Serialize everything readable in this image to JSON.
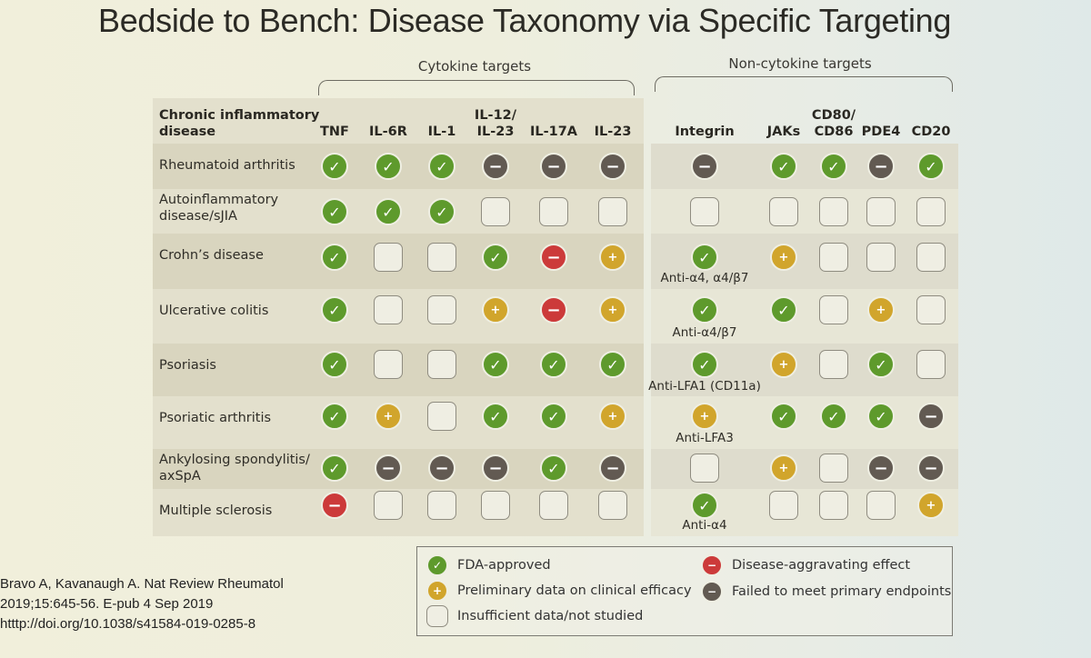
{
  "title": "Bedside to Bench: Disease Taxonomy via Specific Targeting",
  "groups": {
    "cytokine": "Cytokine targets",
    "noncytokine": "Non-cytokine targets"
  },
  "disease_header": [
    "Chronic inflammatory",
    "disease"
  ],
  "columns": [
    [
      "TNF"
    ],
    [
      "IL-6R"
    ],
    [
      "IL-1"
    ],
    [
      "IL-12/",
      "IL-23"
    ],
    [
      "IL-17A"
    ],
    [
      "IL-23"
    ],
    [
      "Integrin"
    ],
    [
      "JAKs"
    ],
    [
      "CD80/",
      "CD86"
    ],
    [
      "PDE4"
    ],
    [
      "CD20"
    ]
  ],
  "rows": [
    {
      "name": [
        "Rheumatoid arthritis"
      ],
      "cells": [
        "fda",
        "fda",
        "fda",
        "failed",
        "failed",
        "failed",
        "failed",
        "fda",
        "fda",
        "failed",
        "fda"
      ],
      "note": ""
    },
    {
      "name": [
        "Autoinflammatory",
        "disease/sJIA"
      ],
      "cells": [
        "fda",
        "fda",
        "fda",
        "none",
        "none",
        "none",
        "none",
        "none",
        "none",
        "none",
        "none"
      ],
      "note": ""
    },
    {
      "name": [
        "Crohn’s disease"
      ],
      "cells": [
        "fda",
        "none",
        "none",
        "fda",
        "aggr",
        "prelim",
        "fda",
        "prelim",
        "none",
        "none",
        "none"
      ],
      "note": "Anti-α4, α4/β7"
    },
    {
      "name": [
        "Ulcerative colitis"
      ],
      "cells": [
        "fda",
        "none",
        "none",
        "prelim",
        "aggr",
        "prelim",
        "fda",
        "fda",
        "none",
        "prelim",
        "none"
      ],
      "note": "Anti-α4/β7"
    },
    {
      "name": [
        "Psoriasis"
      ],
      "cells": [
        "fda",
        "none",
        "none",
        "fda",
        "fda",
        "fda",
        "fda",
        "prelim",
        "none",
        "fda",
        "none"
      ],
      "note": "Anti-LFA1 (CD11a)"
    },
    {
      "name": [
        "Psoriatic arthritis"
      ],
      "cells": [
        "fda",
        "prelim",
        "none",
        "fda",
        "fda",
        "prelim",
        "prelim",
        "fda",
        "fda",
        "fda",
        "failed"
      ],
      "note": "Anti-LFA3"
    },
    {
      "name": [
        "Ankylosing spondylitis/",
        "axSpA"
      ],
      "cells": [
        "fda",
        "failed",
        "failed",
        "failed",
        "fda",
        "failed",
        "none",
        "prelim",
        "none",
        "failed",
        "failed"
      ],
      "note": ""
    },
    {
      "name": [
        "Multiple sclerosis"
      ],
      "cells": [
        "aggr",
        "none",
        "none",
        "none",
        "none",
        "none",
        "fda",
        "none",
        "none",
        "none",
        "prelim"
      ],
      "note": "Anti-α4"
    }
  ],
  "symbols": {
    "fda": "✓",
    "prelim": "+",
    "aggr": "−",
    "failed": "−",
    "none": ""
  },
  "legend": [
    {
      "type": "fda",
      "label": "FDA-approved"
    },
    {
      "type": "prelim",
      "label": "Preliminary data on clinical efficacy"
    },
    {
      "type": "none",
      "label": "Insufficient data/not studied"
    },
    {
      "type": "aggr",
      "label": "Disease-aggravating effect"
    },
    {
      "type": "failed",
      "label": "Failed to meet primary endpoints"
    }
  ],
  "citation": [
    "Bravo A, Kavanaugh A. Nat Review Rheumatol",
    "2019;15:645-56. E-pub 4 Sep 2019",
    "htttp://doi.org/10.1038/s41584-019-0285-8"
  ],
  "colors": {
    "fda": "#5e9a2c",
    "prelim": "#d1a52c",
    "aggr": "#cc3a3a",
    "failed": "#625a52"
  }
}
